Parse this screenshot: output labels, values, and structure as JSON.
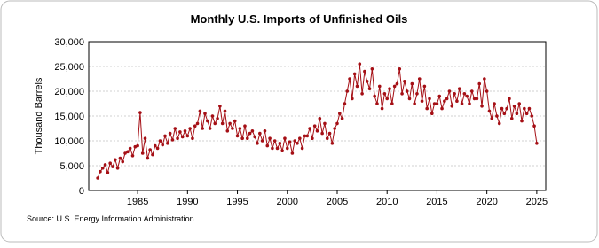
{
  "chart_data": {
    "type": "line",
    "title": "Monthly U.S. Imports of Unfinished Oils",
    "y_label": "Thousand Barrels",
    "source": "Source: U.S. Energy Information Administration",
    "xlim": [
      1980.1,
      2025.9
    ],
    "xticks": [
      1985,
      1990,
      1995,
      2000,
      2005,
      2010,
      2015,
      2020,
      2025
    ],
    "ylim": [
      0,
      30000
    ],
    "yticks": [
      0,
      {
        "value": 5000,
        "label": "5,000"
      },
      {
        "value": 10000,
        "label": "10,000"
      },
      {
        "value": 15000,
        "label": "15,000"
      },
      {
        "value": 20000,
        "label": "20,000"
      },
      {
        "value": 25000,
        "label": "25,000"
      },
      {
        "value": 30000,
        "label": "30,000"
      }
    ],
    "grid": true,
    "color": "#a50f15",
    "x": [
      1981,
      1981.25,
      1981.5,
      1981.75,
      1982,
      1982.25,
      1982.5,
      1982.75,
      1983,
      1983.25,
      1983.5,
      1983.75,
      1984,
      1984.25,
      1984.5,
      1984.75,
      1985,
      1985.25,
      1985.5,
      1985.75,
      1986,
      1986.25,
      1986.5,
      1986.75,
      1987,
      1987.25,
      1987.5,
      1987.75,
      1988,
      1988.25,
      1988.5,
      1988.75,
      1989,
      1989.25,
      1989.5,
      1989.75,
      1990,
      1990.25,
      1990.5,
      1990.75,
      1991,
      1991.25,
      1991.5,
      1991.75,
      1992,
      1992.25,
      1992.5,
      1992.75,
      1993,
      1993.25,
      1993.5,
      1993.75,
      1994,
      1994.25,
      1994.5,
      1994.75,
      1995,
      1995.25,
      1995.5,
      1995.75,
      1996,
      1996.25,
      1996.5,
      1996.75,
      1997,
      1997.25,
      1997.5,
      1997.75,
      1998,
      1998.25,
      1998.5,
      1998.75,
      1999,
      1999.25,
      1999.5,
      1999.75,
      2000,
      2000.25,
      2000.5,
      2000.75,
      2001,
      2001.25,
      2001.5,
      2001.75,
      2002,
      2002.25,
      2002.5,
      2002.75,
      2003,
      2003.25,
      2003.5,
      2003.75,
      2004,
      2004.25,
      2004.5,
      2004.75,
      2005,
      2005.25,
      2005.5,
      2005.75,
      2006,
      2006.25,
      2006.5,
      2006.75,
      2007,
      2007.25,
      2007.5,
      2007.75,
      2008,
      2008.25,
      2008.5,
      2008.75,
      2009,
      2009.25,
      2009.5,
      2009.75,
      2010,
      2010.25,
      2010.5,
      2010.75,
      2011,
      2011.25,
      2011.5,
      2011.75,
      2012,
      2012.25,
      2012.5,
      2012.75,
      2013,
      2013.25,
      2013.5,
      2013.75,
      2014,
      2014.25,
      2014.5,
      2014.75,
      2015,
      2015.25,
      2015.5,
      2015.75,
      2016,
      2016.25,
      2016.5,
      2016.75,
      2017,
      2017.25,
      2017.5,
      2017.75,
      2018,
      2018.25,
      2018.5,
      2018.75,
      2019,
      2019.25,
      2019.5,
      2019.75,
      2020,
      2020.25,
      2020.5,
      2020.75,
      2021,
      2021.25,
      2021.5,
      2021.75,
      2022,
      2022.25,
      2022.5,
      2022.75,
      2023,
      2023.25,
      2023.5,
      2023.75,
      2024,
      2024.25,
      2024.5,
      2024.75,
      2025
    ],
    "values": [
      2500,
      3800,
      4500,
      5200,
      3600,
      5500,
      4800,
      6200,
      4500,
      6500,
      5800,
      7500,
      7800,
      8500,
      7000,
      8800,
      9000,
      15700,
      7500,
      10500,
      6500,
      8200,
      7200,
      9000,
      8500,
      10000,
      9200,
      11000,
      9500,
      11500,
      10200,
      12500,
      10500,
      11800,
      10800,
      12000,
      11000,
      12500,
      10500,
      13000,
      13500,
      16000,
      12500,
      15500,
      14000,
      12500,
      15000,
      13500,
      14500,
      17000,
      13500,
      16000,
      12000,
      13500,
      12500,
      14000,
      11000,
      12500,
      10500,
      13000,
      10500,
      11500,
      12000,
      10800,
      9500,
      11500,
      10000,
      12000,
      9000,
      10500,
      8500,
      10000,
      8500,
      9500,
      8000,
      10500,
      8500,
      9800,
      7500,
      10000,
      9500,
      10500,
      8500,
      11000,
      11000,
      12500,
      10500,
      13000,
      12000,
      14500,
      11500,
      13500,
      10500,
      11500,
      9500,
      12500,
      13500,
      15500,
      14500,
      17500,
      20000,
      22500,
      18500,
      23500,
      21000,
      25500,
      19500,
      24000,
      22000,
      20500,
      24500,
      19000,
      17500,
      21000,
      16500,
      19500,
      18500,
      20500,
      17500,
      21000,
      21500,
      24500,
      19500,
      22000,
      20000,
      18500,
      21500,
      17500,
      19500,
      22500,
      18000,
      21000,
      16500,
      18500,
      15500,
      17500,
      17500,
      19000,
      16500,
      18000,
      18500,
      20000,
      17000,
      19500,
      18000,
      20500,
      17500,
      19500,
      19000,
      17500,
      20000,
      18500,
      18500,
      21500,
      17000,
      22500,
      20000,
      16000,
      14500,
      17500,
      15000,
      13500,
      16500,
      15500,
      16500,
      18500,
      14500,
      17000,
      15500,
      17500,
      14000,
      16500,
      15500,
      16500,
      15000,
      13000,
      9500
    ]
  }
}
